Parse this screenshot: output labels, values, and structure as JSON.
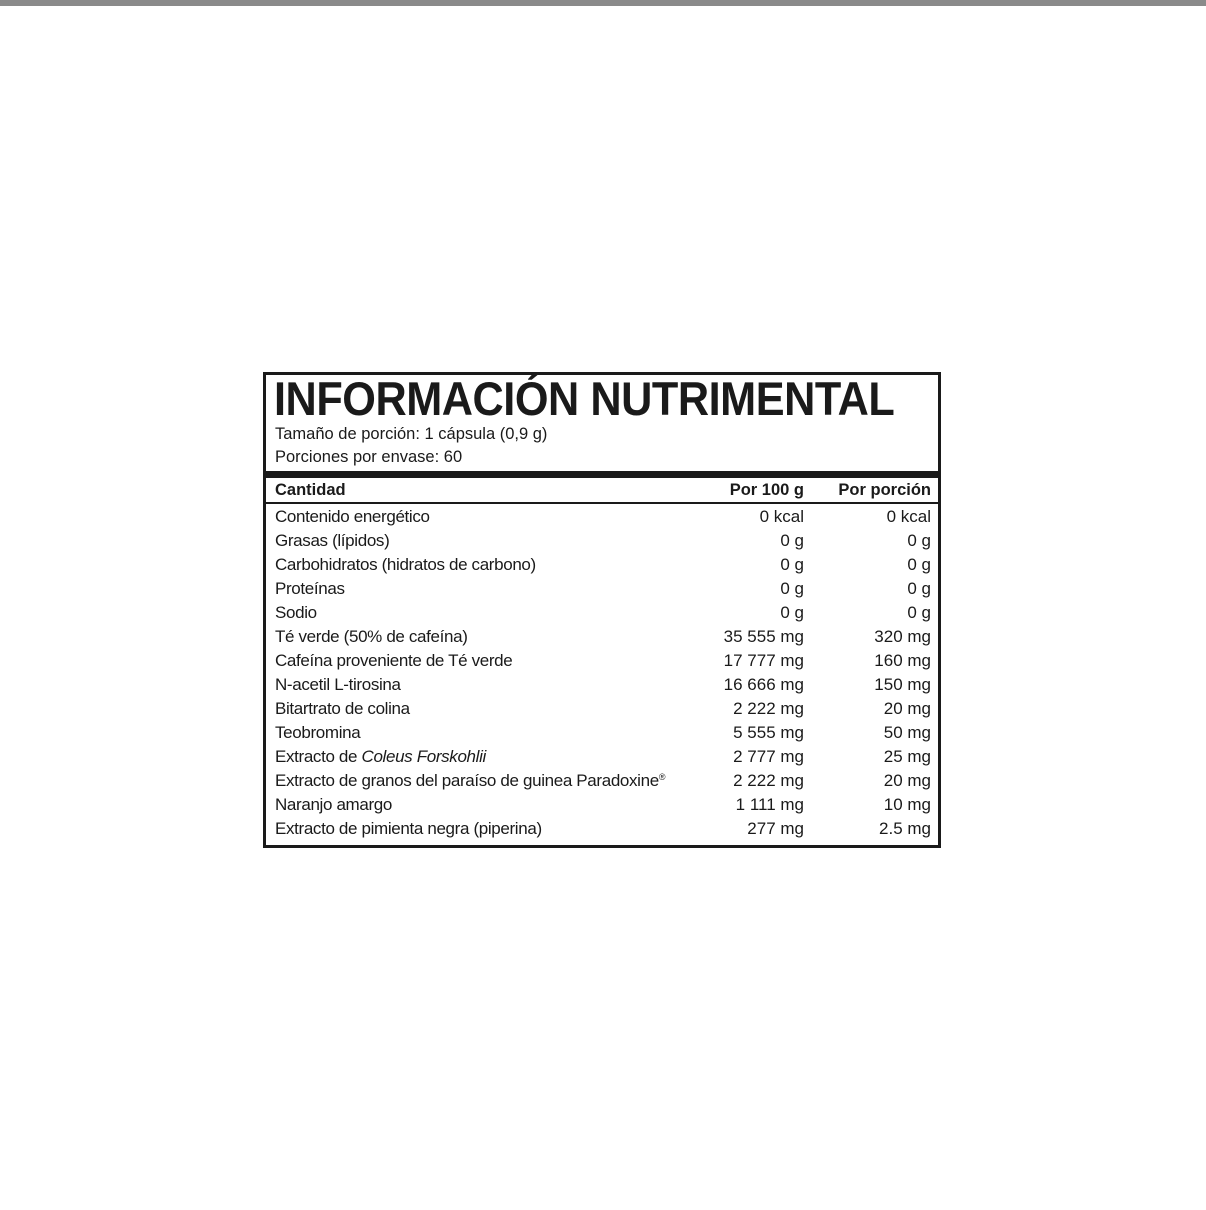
{
  "title": "INFORMACIÓN NUTRIMENTAL",
  "serving_size": "Tamaño de porción:  1 cápsula (0,9 g)",
  "servings_per_container": "Porciones por envase: 60",
  "headers": {
    "name": "Cantidad",
    "per100": "Por 100 g",
    "perServing": "Por porción"
  },
  "rows": [
    {
      "name": "Contenido energético",
      "per100": "0 kcal",
      "perServing": "0 kcal"
    },
    {
      "name": "Grasas (lípidos)",
      "per100": "0 g",
      "perServing": "0 g"
    },
    {
      "name": "Carbohidratos (hidratos de carbono)",
      "per100": "0 g",
      "perServing": "0 g"
    },
    {
      "name": "Proteínas",
      "per100": "0 g",
      "perServing": "0 g"
    },
    {
      "name": "Sodio",
      "per100": "0 g",
      "perServing": "0 g"
    },
    {
      "name": "Té verde (50% de cafeína)",
      "per100": "35 555 mg",
      "perServing": "320 mg"
    },
    {
      "name": "Cafeína proveniente de Té verde",
      "per100": "17 777 mg",
      "perServing": "160 mg"
    },
    {
      "name": "N-acetil L-tirosina",
      "per100": "16 666 mg",
      "perServing": "150 mg"
    },
    {
      "name": "Bitartrato de colina",
      "per100": "2 222 mg",
      "perServing": "20 mg"
    },
    {
      "name": "Teobromina",
      "per100": "5 555 mg",
      "perServing": "50 mg"
    },
    {
      "name": "Extracto de ",
      "italic": "Coleus Forskohlii",
      "per100": "2 777 mg",
      "perServing": "25 mg"
    },
    {
      "name": "Extracto de granos del paraíso de guinea Paradoxine",
      "sup": "®",
      "per100": "2 222 mg",
      "perServing": "20 mg"
    },
    {
      "name": "Naranjo amargo",
      "per100": "1 111 mg",
      "perServing": "10 mg"
    },
    {
      "name": "Extracto de pimienta negra (piperina)",
      "per100": "277 mg",
      "perServing": "2.5 mg"
    }
  ]
}
